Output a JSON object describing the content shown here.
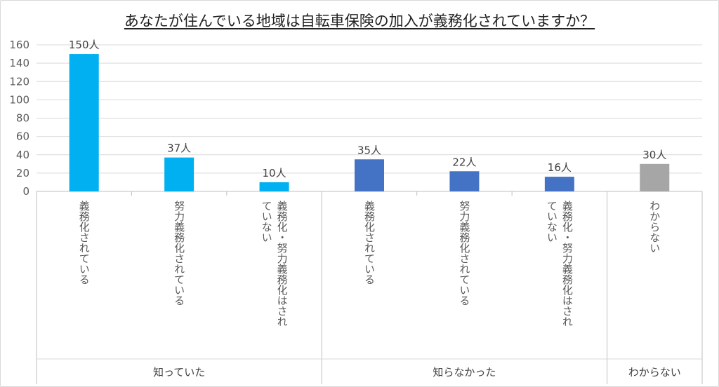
{
  "chart_data": {
    "type": "bar",
    "title": "あなたが住んでいる地域は自転車保険の加入が義務化されていますか？",
    "ylim": [
      0,
      160
    ],
    "yticks": [
      0,
      20,
      40,
      60,
      80,
      100,
      120,
      140,
      160
    ],
    "grid": true,
    "categories": [
      [
        "義務化されている"
      ],
      [
        "努力義務化されている"
      ],
      [
        "義務化・努力義務化はされ",
        "ていない"
      ],
      [
        "義務化されている"
      ],
      [
        "努力義務化されている"
      ],
      [
        "義務化・努力義務化はされ",
        "ていない"
      ],
      [
        "わからない"
      ]
    ],
    "values": [
      150,
      37,
      10,
      35,
      22,
      16,
      30
    ],
    "value_labels": [
      "150人",
      "37人",
      "10人",
      "35人",
      "22人",
      "16人",
      "30人"
    ],
    "groups": [
      {
        "label": "知っていた",
        "span": [
          0,
          2
        ]
      },
      {
        "label": "知らなかった",
        "span": [
          3,
          5
        ]
      },
      {
        "label": "わからない",
        "span": [
          6,
          6
        ]
      }
    ],
    "colors": [
      "#00b0f0",
      "#00b0f0",
      "#00b0f0",
      "#4472c4",
      "#4472c4",
      "#4472c4",
      "#a6a6a6"
    ]
  }
}
